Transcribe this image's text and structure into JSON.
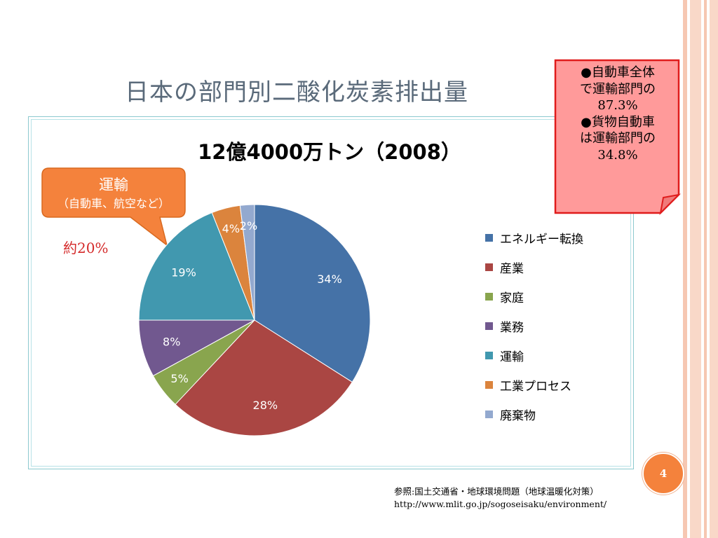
{
  "slide": {
    "title": "日本の部門別二酸化炭素排出量",
    "page_number": "4"
  },
  "callout": {
    "title": "運輸",
    "subtitle": "（自動車、航空など）"
  },
  "about_label": "約20%",
  "note": {
    "lines": [
      "●自動車全体",
      "で運輸部門の",
      "87.3%",
      "●貨物自動車",
      "は運輸部門の",
      "34.8%"
    ]
  },
  "source": {
    "line1": "参照:国土交通省・地球環境問題（地球温暖化対策）",
    "line2": "http://www.mlit.go.jp/sogoseisaku/environment/"
  },
  "chart_data": {
    "type": "pie",
    "title": "12億4000万トン（2008）",
    "slices": [
      {
        "name": "エネルギー転換",
        "value": 34,
        "label": "34%",
        "color": "#4572a7"
      },
      {
        "name": "産業",
        "value": 28,
        "label": "28%",
        "color": "#aa4643"
      },
      {
        "name": "家庭",
        "value": 5,
        "label": "5%",
        "color": "#89a54e"
      },
      {
        "name": "業務",
        "value": 8,
        "label": "8%",
        "color": "#71588f"
      },
      {
        "name": "運輸",
        "value": 19,
        "label": "19%",
        "color": "#4198af"
      },
      {
        "name": "工業プロセス",
        "value": 4,
        "label": "4%",
        "color": "#db843d"
      },
      {
        "name": "廃棄物",
        "value": 2,
        "label": "2%",
        "color": "#93a9cf"
      }
    ],
    "legend_position": "right"
  },
  "colors": {
    "callout_fill": "#f4823c",
    "note_fill": "#ff9a9a",
    "note_border": "#e01c1c",
    "accent": "#f4823c",
    "about_label": "#d42a2a"
  }
}
